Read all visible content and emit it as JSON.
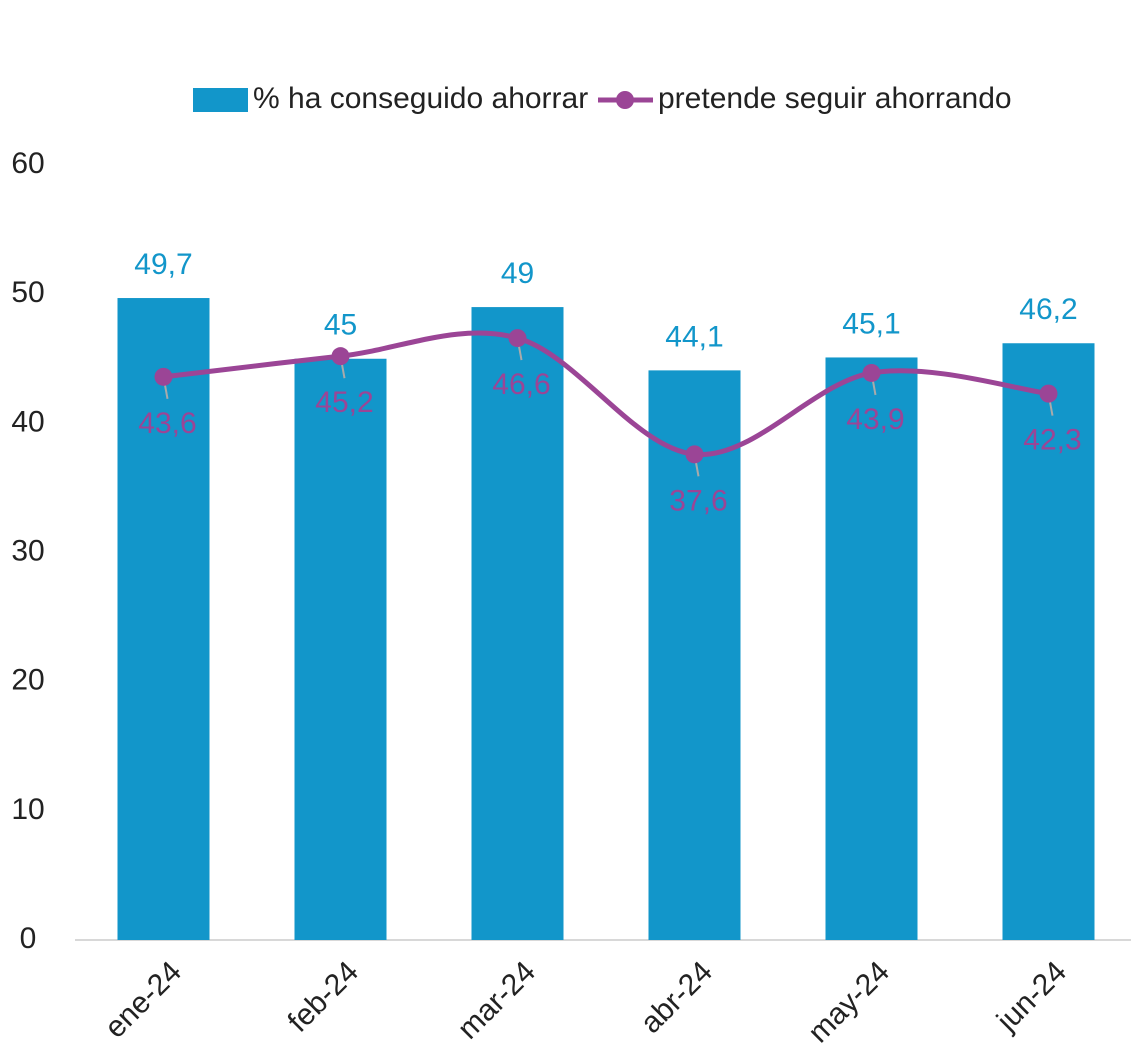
{
  "chart_data": {
    "type": "bar_line",
    "categories": [
      "ene-24",
      "feb-24",
      "mar-24",
      "abr-24",
      "may-24",
      "jun-24"
    ],
    "series": [
      {
        "name": "% ha conseguido ahorrar",
        "type": "bar",
        "color": "#1296ca",
        "values": [
          49.7,
          45,
          49,
          44.1,
          45.1,
          46.2
        ],
        "value_labels": [
          "49,7",
          "45",
          "49",
          "44,1",
          "45,1",
          "46,2"
        ]
      },
      {
        "name": "pretende seguir ahorrando",
        "type": "line",
        "color": "#9b4596",
        "values": [
          43.6,
          45.2,
          46.6,
          37.6,
          43.9,
          42.3
        ],
        "value_labels": [
          "43,6",
          "45,2",
          "46,6",
          "37,6",
          "43,9",
          "42,3"
        ]
      }
    ],
    "ylim": [
      0,
      60
    ],
    "yticks": [
      0,
      10,
      20,
      30,
      40,
      50,
      60
    ],
    "grid": false,
    "legend": "top"
  }
}
